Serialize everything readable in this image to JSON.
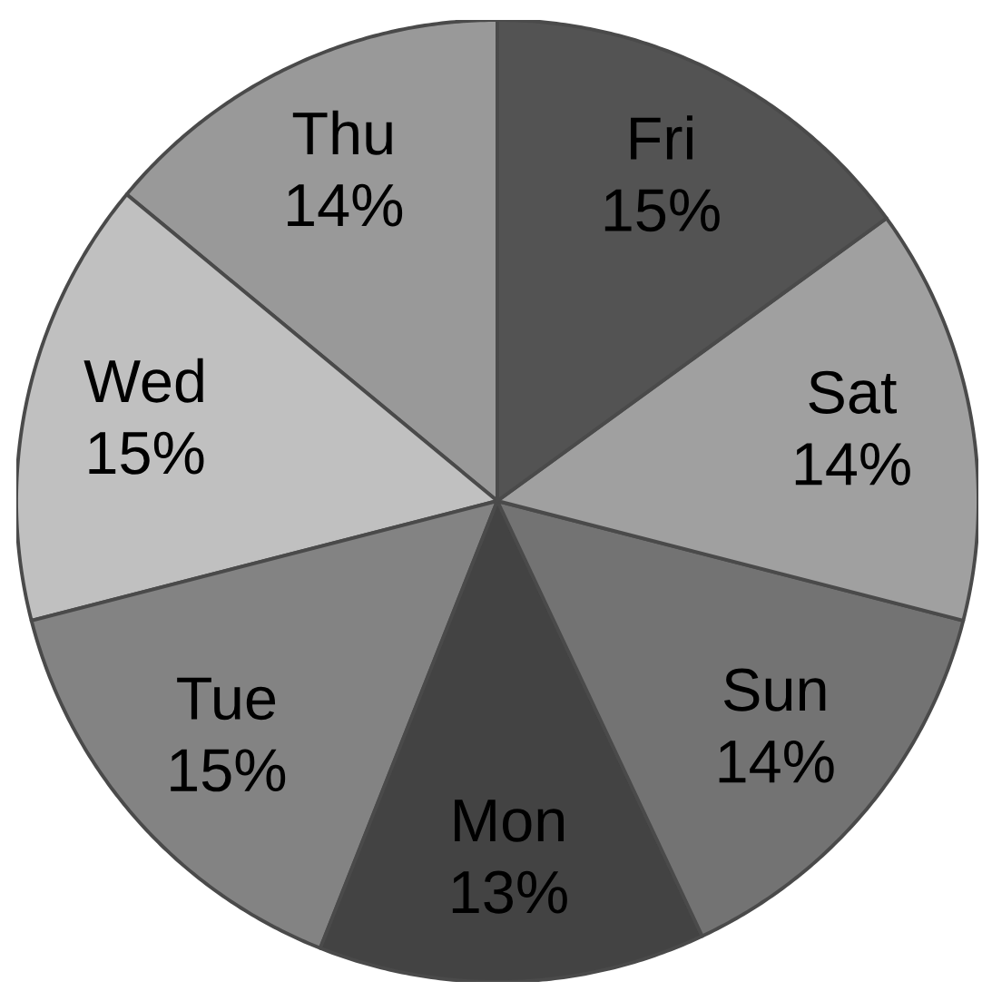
{
  "chart_data": {
    "type": "pie",
    "categories": [
      "Thu",
      "Wed",
      "Tue",
      "Mon",
      "Sun",
      "Sat",
      "Fri"
    ],
    "values": [
      14,
      15,
      15,
      13,
      14,
      14,
      15
    ],
    "colors": [
      "#999999",
      "#c0c0c0",
      "#838383",
      "#434343",
      "#737373",
      "#a0a0a0",
      "#535353"
    ],
    "value_labels": [
      "14%",
      "15%",
      "15%",
      "13%",
      "14%",
      "14%",
      "15%"
    ]
  }
}
